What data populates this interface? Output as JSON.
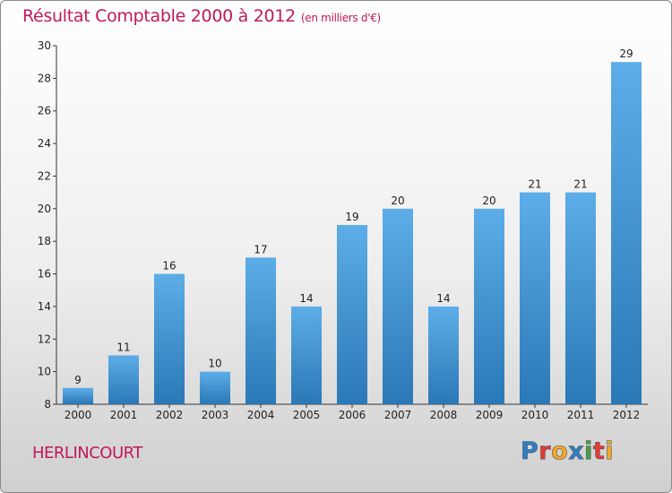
{
  "title": {
    "main": "Résultat Comptable 2000 à 2012",
    "sub": "(en milliers d'€)"
  },
  "commune": "HERLINCOURT",
  "logo": {
    "text": "Proxiti",
    "letters": [
      {
        "char": "P",
        "color": "#2e7fc8"
      },
      {
        "char": "r",
        "color": "#e53935"
      },
      {
        "char": "o",
        "color": "#f5a623"
      },
      {
        "char": "x",
        "color": "#2e7fc8"
      },
      {
        "char": "i",
        "color": "#43a047"
      },
      {
        "char": "t",
        "color": "#e53935"
      },
      {
        "char": "i",
        "color": "#f5a623"
      }
    ]
  },
  "colors": {
    "title": "#c2185b",
    "bar_top": "#5dade8",
    "bar_bottom": "#2a78b5",
    "axis": "#333333"
  },
  "chart_data": {
    "type": "bar",
    "title": "Résultat Comptable 2000 à 2012",
    "subtitle": "(en milliers d'€)",
    "xlabel": "",
    "ylabel": "",
    "categories": [
      "2000",
      "2001",
      "2002",
      "2003",
      "2004",
      "2005",
      "2006",
      "2007",
      "2008",
      "2009",
      "2010",
      "2011",
      "2012"
    ],
    "values": [
      9,
      11,
      16,
      10,
      17,
      14,
      19,
      20,
      14,
      20,
      21,
      21,
      29
    ],
    "ylim": [
      8,
      30
    ],
    "yticks": [
      8,
      10,
      12,
      14,
      16,
      18,
      20,
      22,
      24,
      26,
      28,
      30
    ],
    "grid": false,
    "data_labels": true
  }
}
